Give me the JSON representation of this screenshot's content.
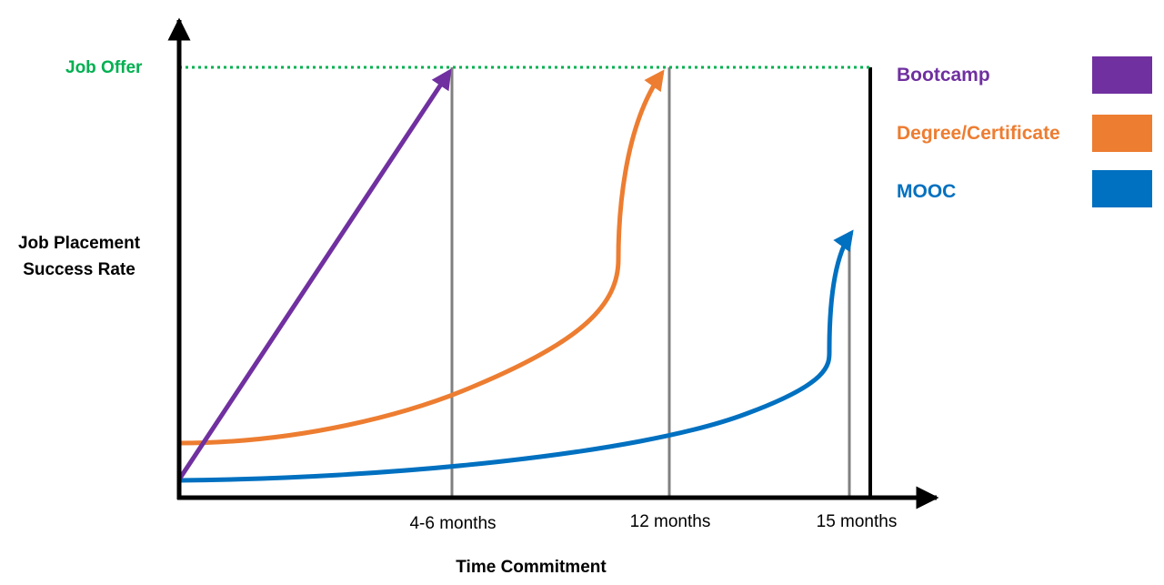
{
  "chart_data": {
    "type": "line",
    "title": "",
    "xlabel": "Time Commitment",
    "ylabel": "Job Placement Success Rate",
    "ylabel_lines": [
      "Job Placement",
      "Success Rate"
    ],
    "reference_line": {
      "label": "Job Offer",
      "color": "#00b050"
    },
    "x_ticks": [
      "4-6 months",
      "12 months",
      "15 months"
    ],
    "grid": false,
    "legend_position": "right",
    "series": [
      {
        "name": "Bootcamp",
        "color": "#7030a0",
        "end_tick": "4-6 months",
        "reaches": "Job Offer"
      },
      {
        "name": "Degree/Certificate",
        "color": "#ed7d31",
        "end_tick": "12 months",
        "reaches": "Job Offer"
      },
      {
        "name": "MOOC",
        "color": "#0070c0",
        "end_tick": "15 months",
        "reaches": ""
      }
    ]
  }
}
